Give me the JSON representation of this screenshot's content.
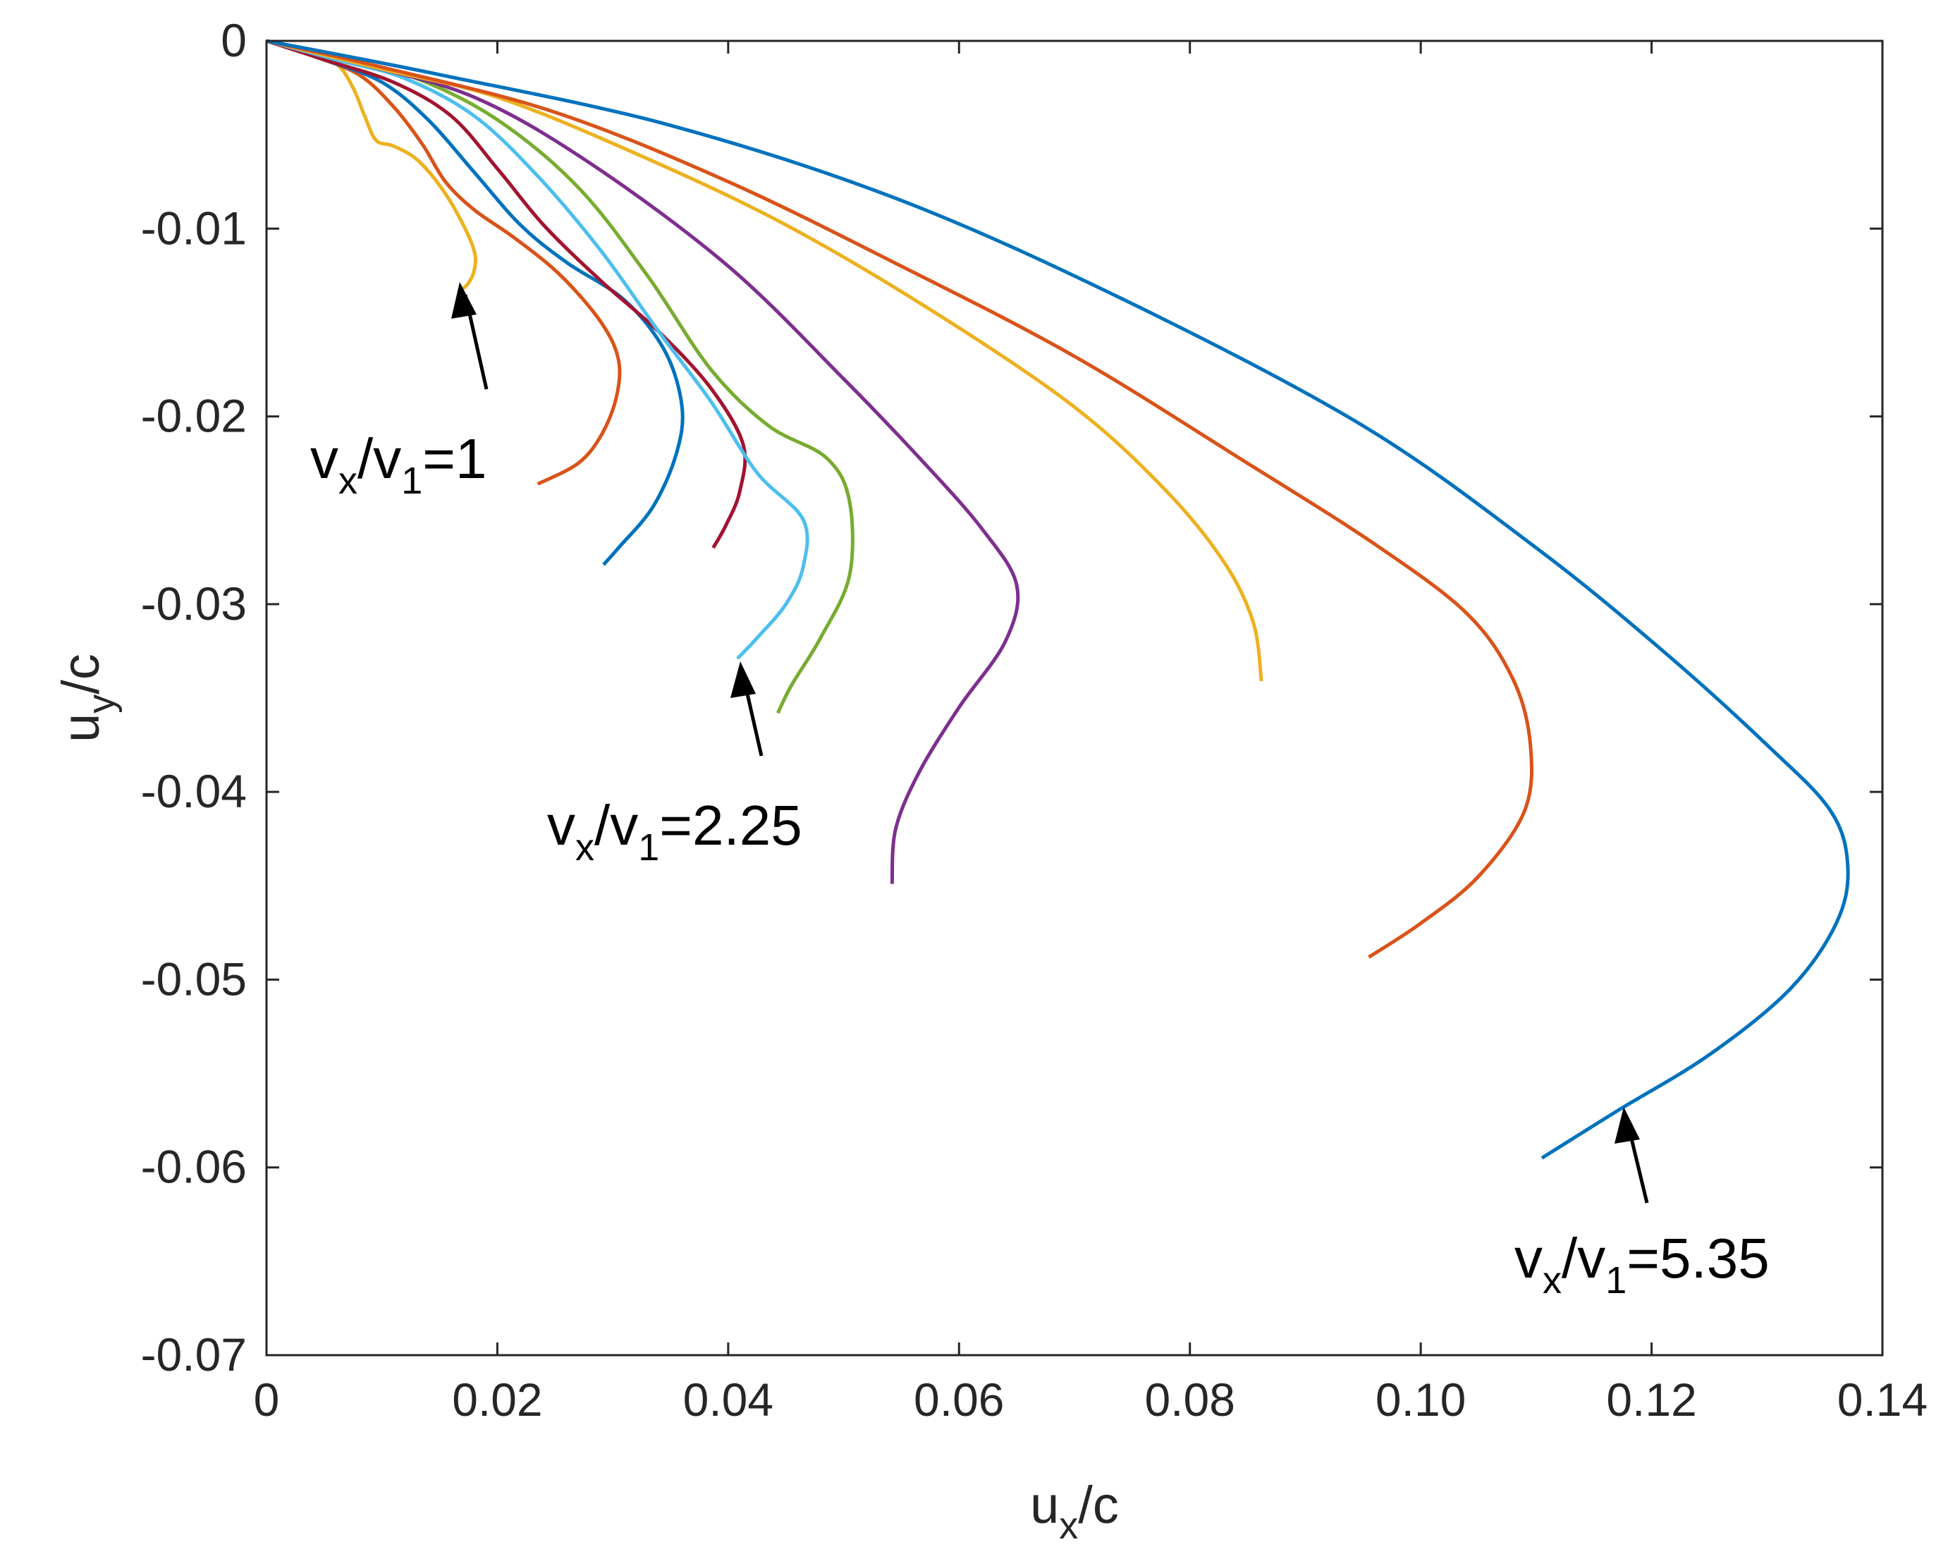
{
  "chart_data": {
    "type": "line",
    "title": "",
    "xlabel": {
      "base": "u",
      "sub": "x",
      "suffix": "/c"
    },
    "ylabel": {
      "base": "u",
      "sub": "y",
      "suffix": "/c"
    },
    "xlim": [
      0,
      0.14
    ],
    "ylim": [
      -0.07,
      0
    ],
    "grid": false,
    "xticks": [
      {
        "value": 0,
        "label": "0"
      },
      {
        "value": 0.02,
        "label": "0.02"
      },
      {
        "value": 0.04,
        "label": "0.04"
      },
      {
        "value": 0.06,
        "label": "0.06"
      },
      {
        "value": 0.08,
        "label": "0.08"
      },
      {
        "value": 0.1,
        "label": "0.10"
      },
      {
        "value": 0.12,
        "label": "0.12"
      },
      {
        "value": 0.14,
        "label": "0.14"
      }
    ],
    "yticks": [
      {
        "value": 0,
        "label": "0"
      },
      {
        "value": -0.01,
        "label": "-0.01"
      },
      {
        "value": -0.02,
        "label": "-0.02"
      },
      {
        "value": -0.03,
        "label": "-0.03"
      },
      {
        "value": -0.04,
        "label": "-0.04"
      },
      {
        "value": -0.05,
        "label": "-0.05"
      },
      {
        "value": -0.06,
        "label": "-0.06"
      },
      {
        "value": -0.07,
        "label": "-0.07"
      }
    ],
    "series": [
      {
        "name": "curve-1",
        "color": "#EDB120",
        "points": [
          [
            0,
            0
          ],
          [
            0.003,
            -0.0005
          ],
          [
            0.006,
            -0.0012
          ],
          [
            0.0075,
            -0.0025
          ],
          [
            0.0085,
            -0.004
          ],
          [
            0.0095,
            -0.0053
          ],
          [
            0.011,
            -0.0056
          ],
          [
            0.013,
            -0.0063
          ],
          [
            0.015,
            -0.0077
          ],
          [
            0.0168,
            -0.0095
          ],
          [
            0.018,
            -0.0112
          ],
          [
            0.018,
            -0.0122
          ],
          [
            0.0175,
            -0.0129
          ],
          [
            0.0168,
            -0.0133
          ]
        ]
      },
      {
        "name": "curve-2",
        "color": "#D95319",
        "points": [
          [
            0,
            0
          ],
          [
            0.004,
            -0.0008
          ],
          [
            0.008,
            -0.0018
          ],
          [
            0.011,
            -0.0035
          ],
          [
            0.0135,
            -0.0055
          ],
          [
            0.0155,
            -0.0075
          ],
          [
            0.018,
            -0.009
          ],
          [
            0.0215,
            -0.0105
          ],
          [
            0.0255,
            -0.0125
          ],
          [
            0.029,
            -0.015
          ],
          [
            0.0305,
            -0.017
          ],
          [
            0.0303,
            -0.019
          ],
          [
            0.029,
            -0.021
          ],
          [
            0.027,
            -0.0225
          ],
          [
            0.0235,
            -0.0236
          ]
        ]
      },
      {
        "name": "curve-3",
        "color": "#0072BD",
        "points": [
          [
            0,
            0
          ],
          [
            0.005,
            -0.001
          ],
          [
            0.01,
            -0.0022
          ],
          [
            0.014,
            -0.0042
          ],
          [
            0.018,
            -0.007
          ],
          [
            0.022,
            -0.0098
          ],
          [
            0.026,
            -0.0118
          ],
          [
            0.031,
            -0.0138
          ],
          [
            0.0345,
            -0.0165
          ],
          [
            0.036,
            -0.0195
          ],
          [
            0.0355,
            -0.022
          ],
          [
            0.0335,
            -0.0248
          ],
          [
            0.0305,
            -0.027
          ],
          [
            0.0292,
            -0.0279
          ]
        ]
      },
      {
        "name": "curve-4",
        "color": "#A2142F",
        "points": [
          [
            0,
            0
          ],
          [
            0.005,
            -0.001
          ],
          [
            0.011,
            -0.0022
          ],
          [
            0.016,
            -0.004
          ],
          [
            0.02,
            -0.0068
          ],
          [
            0.024,
            -0.0098
          ],
          [
            0.029,
            -0.0128
          ],
          [
            0.034,
            -0.0155
          ],
          [
            0.0385,
            -0.0185
          ],
          [
            0.0413,
            -0.0215
          ],
          [
            0.041,
            -0.024
          ],
          [
            0.0398,
            -0.0258
          ],
          [
            0.0387,
            -0.027
          ]
        ]
      },
      {
        "name": "curve-5",
        "color": "#4DBEEE",
        "points": [
          [
            0,
            0
          ],
          [
            0.006,
            -0.001
          ],
          [
            0.012,
            -0.002
          ],
          [
            0.018,
            -0.004
          ],
          [
            0.0235,
            -0.0072
          ],
          [
            0.029,
            -0.0112
          ],
          [
            0.034,
            -0.0155
          ],
          [
            0.0385,
            -0.0192
          ],
          [
            0.0425,
            -0.023
          ],
          [
            0.0465,
            -0.0255
          ],
          [
            0.0465,
            -0.028
          ],
          [
            0.045,
            -0.03
          ],
          [
            0.0425,
            -0.0318
          ],
          [
            0.0408,
            -0.0329
          ]
        ]
      },
      {
        "name": "curve-6",
        "color": "#77AC30",
        "points": [
          [
            0,
            0
          ],
          [
            0.006,
            -0.0009
          ],
          [
            0.013,
            -0.002
          ],
          [
            0.02,
            -0.0042
          ],
          [
            0.027,
            -0.0078
          ],
          [
            0.033,
            -0.0125
          ],
          [
            0.0385,
            -0.0175
          ],
          [
            0.0435,
            -0.0205
          ],
          [
            0.0485,
            -0.0222
          ],
          [
            0.0505,
            -0.0245
          ],
          [
            0.0505,
            -0.0285
          ],
          [
            0.048,
            -0.0318
          ],
          [
            0.0455,
            -0.0343
          ],
          [
            0.0443,
            -0.0358
          ]
        ]
      },
      {
        "name": "curve-7",
        "color": "#7E2F8E",
        "points": [
          [
            0,
            0
          ],
          [
            0.008,
            -0.0012
          ],
          [
            0.018,
            -0.003
          ],
          [
            0.028,
            -0.0065
          ],
          [
            0.04,
            -0.012
          ],
          [
            0.05,
            -0.018
          ],
          [
            0.057,
            -0.0225
          ],
          [
            0.062,
            -0.026
          ],
          [
            0.065,
            -0.029
          ],
          [
            0.064,
            -0.032
          ],
          [
            0.06,
            -0.0355
          ],
          [
            0.0565,
            -0.039
          ],
          [
            0.0545,
            -0.042
          ],
          [
            0.0542,
            -0.0449
          ]
        ]
      },
      {
        "name": "curve-8",
        "color": "#EDB120",
        "points": [
          [
            0,
            0
          ],
          [
            0.01,
            -0.0015
          ],
          [
            0.02,
            -0.003
          ],
          [
            0.032,
            -0.006
          ],
          [
            0.045,
            -0.0098
          ],
          [
            0.058,
            -0.0145
          ],
          [
            0.07,
            -0.0195
          ],
          [
            0.078,
            -0.024
          ],
          [
            0.083,
            -0.0278
          ],
          [
            0.0855,
            -0.031
          ],
          [
            0.0862,
            -0.0341
          ]
        ]
      },
      {
        "name": "curve-9",
        "color": "#D95319",
        "points": [
          [
            0,
            0
          ],
          [
            0.01,
            -0.0014
          ],
          [
            0.025,
            -0.0038
          ],
          [
            0.04,
            -0.0075
          ],
          [
            0.055,
            -0.012
          ],
          [
            0.07,
            -0.0168
          ],
          [
            0.085,
            -0.0225
          ],
          [
            0.096,
            -0.0268
          ],
          [
            0.104,
            -0.0305
          ],
          [
            0.108,
            -0.034
          ],
          [
            0.1095,
            -0.0375
          ],
          [
            0.109,
            -0.041
          ],
          [
            0.105,
            -0.0445
          ],
          [
            0.1,
            -0.047
          ],
          [
            0.0955,
            -0.0488
          ]
        ]
      },
      {
        "name": "curve-10",
        "color": "#0072BD",
        "points": [
          [
            0,
            0
          ],
          [
            0.015,
            -0.0018
          ],
          [
            0.035,
            -0.0045
          ],
          [
            0.055,
            -0.0085
          ],
          [
            0.075,
            -0.014
          ],
          [
            0.095,
            -0.0205
          ],
          [
            0.11,
            -0.027
          ],
          [
            0.121,
            -0.0325
          ],
          [
            0.13,
            -0.0375
          ],
          [
            0.1355,
            -0.041
          ],
          [
            0.137,
            -0.044
          ],
          [
            0.136,
            -0.047
          ],
          [
            0.132,
            -0.0505
          ],
          [
            0.125,
            -0.054
          ],
          [
            0.117,
            -0.057
          ],
          [
            0.1105,
            -0.0595
          ]
        ]
      }
    ],
    "annotations": [
      {
        "base": "v",
        "sub1": "x",
        "mid": "/v",
        "sub2": "1",
        "suffix": "=1",
        "point_to": [
          0.0168,
          -0.0133
        ]
      },
      {
        "base": "v",
        "sub1": "x",
        "mid": "/v",
        "sub2": "1",
        "suffix": "=2.25",
        "point_to": [
          0.0408,
          -0.0329
        ]
      },
      {
        "base": "v",
        "sub1": "x",
        "mid": "/v",
        "sub2": "1",
        "suffix": "=5.35",
        "point_to": [
          0.117,
          -0.0568
        ]
      }
    ]
  }
}
